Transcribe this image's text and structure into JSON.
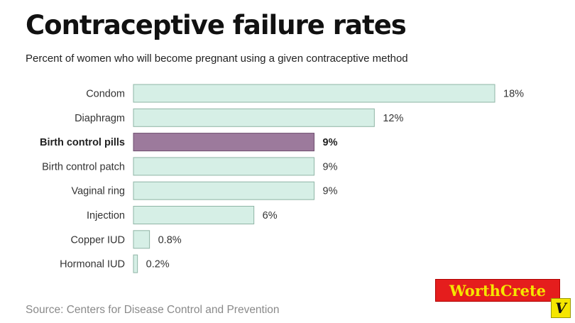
{
  "header": {
    "title": "Contraceptive failure rates",
    "subtitle": "Percent of women who will become pregnant using a given contraceptive method"
  },
  "footer": {
    "source": "Source: Centers for Disease Control and Prevention"
  },
  "watermark": {
    "text": "WorthCrete",
    "mark": "V"
  },
  "colors": {
    "bar_default": "#d6efe6",
    "bar_default_stroke": "#8fb5a6",
    "bar_highlight": "#9c7a9c",
    "bar_highlight_stroke": "#6e4e6e",
    "label_text": "#333333"
  },
  "chart_data": {
    "type": "bar",
    "orientation": "horizontal",
    "title": "Contraceptive failure rates",
    "subtitle": "Percent of women who will become pregnant using a given contraceptive method",
    "categories": [
      "Condom",
      "Diaphragm",
      "Birth control pills",
      "Birth control patch",
      "Vaginal ring",
      "Injection",
      "Copper IUD",
      "Hormonal IUD"
    ],
    "values": [
      18,
      12,
      9,
      9,
      9,
      6,
      0.8,
      0.2
    ],
    "value_labels": [
      "18%",
      "12%",
      "9%",
      "9%",
      "9%",
      "6%",
      "0.8%",
      "0.2%"
    ],
    "highlight": "Birth control pills",
    "xlim": [
      0,
      18
    ],
    "grid": false,
    "legend": "none"
  }
}
